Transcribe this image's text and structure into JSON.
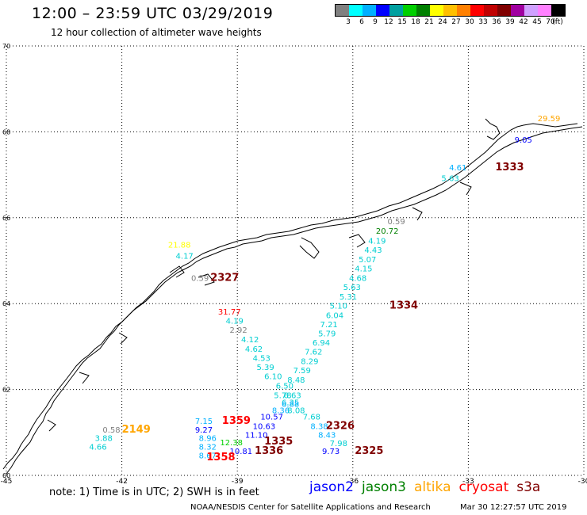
{
  "header": {
    "title": "12:00 – 23:59 UTC 03/29/2019",
    "subtitle": "12 hour collection of altimeter wave heights"
  },
  "color_scale": {
    "colors": [
      "#808080",
      "#00ffff",
      "#00b0ff",
      "#0000ff",
      "#00a0a0",
      "#00d000",
      "#008000",
      "#ffff00",
      "#ffc000",
      "#ff8000",
      "#ff0000",
      "#c00000",
      "#800000",
      "#a000a0",
      "#d0a0ff",
      "#ff80ff",
      "#000000"
    ],
    "labels": [
      "3",
      "6",
      "9",
      "12",
      "15",
      "18",
      "21",
      "24",
      "27",
      "30",
      "33",
      "36",
      "39",
      "42",
      "45",
      "70",
      "(ft)"
    ]
  },
  "map": {
    "lat_labels": [
      "70",
      "68",
      "66",
      "64",
      "62",
      "60"
    ],
    "lon_labels": [
      "-45",
      "-42",
      "-39",
      "-36",
      "-33",
      "-30"
    ],
    "wave_values": [
      {
        "text": "29.59",
        "lon": -31.2,
        "lat": 68.25,
        "color": "#ffa500"
      },
      {
        "text": "9.05",
        "lon": -31.8,
        "lat": 67.75,
        "color": "#0000ff"
      },
      {
        "text": "4.61",
        "lon": -33.5,
        "lat": 67.1,
        "color": "#00b0ff"
      },
      {
        "text": "5.63",
        "lon": -33.7,
        "lat": 66.85,
        "color": "#00ced1"
      },
      {
        "text": "1333",
        "lon": -32.3,
        "lat": 67.1,
        "color": "#800000",
        "bold": true
      },
      {
        "text": "0.59",
        "lon": -35.1,
        "lat": 65.85,
        "color": "#808080"
      },
      {
        "text": "20.72",
        "lon": -35.4,
        "lat": 65.63,
        "color": "#008000"
      },
      {
        "text": "4.19",
        "lon": -35.6,
        "lat": 65.4,
        "color": "#00ced1"
      },
      {
        "text": "4.43",
        "lon": -35.7,
        "lat": 65.18,
        "color": "#00ced1"
      },
      {
        "text": "5.07",
        "lon": -35.85,
        "lat": 64.96,
        "color": "#00ced1"
      },
      {
        "text": "4.15",
        "lon": -35.95,
        "lat": 64.75,
        "color": "#00ced1"
      },
      {
        "text": "4.68",
        "lon": -36.1,
        "lat": 64.53,
        "color": "#00ced1"
      },
      {
        "text": "5.63",
        "lon": -36.25,
        "lat": 64.32,
        "color": "#00ced1"
      },
      {
        "text": "5.31",
        "lon": -36.35,
        "lat": 64.1,
        "color": "#00ced1"
      },
      {
        "text": "5.10",
        "lon": -36.6,
        "lat": 63.88,
        "color": "#00ced1"
      },
      {
        "text": "1334",
        "lon": -35.05,
        "lat": 63.88,
        "color": "#800000",
        "bold": true
      },
      {
        "text": "6.04",
        "lon": -36.7,
        "lat": 63.66,
        "color": "#00ced1"
      },
      {
        "text": "7.21",
        "lon": -36.85,
        "lat": 63.45,
        "color": "#00ced1"
      },
      {
        "text": "5.79",
        "lon": -36.9,
        "lat": 63.24,
        "color": "#00ced1"
      },
      {
        "text": "6.94",
        "lon": -37.05,
        "lat": 63.03,
        "color": "#00ced1"
      },
      {
        "text": "7.62",
        "lon": -37.25,
        "lat": 62.81,
        "color": "#00ced1"
      },
      {
        "text": "8.29",
        "lon": -37.35,
        "lat": 62.59,
        "color": "#00ced1"
      },
      {
        "text": "7.59",
        "lon": -37.55,
        "lat": 62.38,
        "color": "#00ced1"
      },
      {
        "text": "8.48",
        "lon": -37.7,
        "lat": 62.16,
        "color": "#00ced1"
      },
      {
        "text": "21.88",
        "lon": -40.8,
        "lat": 65.3,
        "color": "#ffff00"
      },
      {
        "text": "4.17",
        "lon": -40.6,
        "lat": 65.05,
        "color": "#00ced1"
      },
      {
        "text": "0.59",
        "lon": -40.2,
        "lat": 64.53,
        "color": "#808080"
      },
      {
        "text": "2327",
        "lon": -39.7,
        "lat": 64.53,
        "color": "#800000",
        "bold": true
      },
      {
        "text": "31.77",
        "lon": -39.5,
        "lat": 63.75,
        "color": "#ff0000"
      },
      {
        "text": "4.19",
        "lon": -39.3,
        "lat": 63.53,
        "color": "#00ced1"
      },
      {
        "text": "2.92",
        "lon": -39.2,
        "lat": 63.32,
        "color": "#808080"
      },
      {
        "text": "4.12",
        "lon": -38.9,
        "lat": 63.1,
        "color": "#00ced1"
      },
      {
        "text": "4.62",
        "lon": -38.8,
        "lat": 62.88,
        "color": "#00ced1"
      },
      {
        "text": "4.53",
        "lon": -38.6,
        "lat": 62.67,
        "color": "#00ced1"
      },
      {
        "text": "5.39",
        "lon": -38.5,
        "lat": 62.45,
        "color": "#00ced1"
      },
      {
        "text": "6.10",
        "lon": -38.3,
        "lat": 62.24,
        "color": "#00ced1"
      },
      {
        "text": "6.50",
        "lon": -38.0,
        "lat": 62.02,
        "color": "#00ced1"
      },
      {
        "text": "5.78",
        "lon": -38.05,
        "lat": 61.8,
        "color": "#00ced1"
      },
      {
        "text": "6.63",
        "lon": -37.8,
        "lat": 61.8,
        "color": "#00ced1"
      },
      {
        "text": "6.35",
        "lon": -37.85,
        "lat": 61.63,
        "color": "#00ced1"
      },
      {
        "text": "6.88",
        "lon": -37.85,
        "lat": 61.6,
        "color": "#00b0ff"
      },
      {
        "text": "8.36",
        "lon": -38.1,
        "lat": 61.45,
        "color": "#00b0ff"
      },
      {
        "text": "8.08",
        "lon": -37.7,
        "lat": 61.45,
        "color": "#00ced1"
      },
      {
        "text": "10.57",
        "lon": -38.4,
        "lat": 61.3,
        "color": "#0000ff"
      },
      {
        "text": "7.68",
        "lon": -37.3,
        "lat": 61.3,
        "color": "#00ced1"
      },
      {
        "text": "10.63",
        "lon": -38.6,
        "lat": 61.08,
        "color": "#0000ff"
      },
      {
        "text": "8.38",
        "lon": -37.1,
        "lat": 61.08,
        "color": "#00b0ff"
      },
      {
        "text": "2326",
        "lon": -36.7,
        "lat": 61.08,
        "color": "#800000",
        "bold": true
      },
      {
        "text": "11.10",
        "lon": -38.8,
        "lat": 60.88,
        "color": "#0000ff"
      },
      {
        "text": "8.43",
        "lon": -36.9,
        "lat": 60.88,
        "color": "#00b0ff"
      },
      {
        "text": "7.15",
        "lon": -40.1,
        "lat": 61.2,
        "color": "#00b0ff"
      },
      {
        "text": "1359",
        "lon": -39.4,
        "lat": 61.2,
        "color": "#ff0000",
        "bold": true
      },
      {
        "text": "9.27",
        "lon": -40.1,
        "lat": 61.0,
        "color": "#0000ff"
      },
      {
        "text": "8.96",
        "lon": -40.0,
        "lat": 60.8,
        "color": "#00b0ff"
      },
      {
        "text": "12.38",
        "lon": -39.45,
        "lat": 60.7,
        "color": "#00d000"
      },
      {
        "text": "1335",
        "lon": -38.3,
        "lat": 60.72,
        "color": "#800000",
        "bold": true
      },
      {
        "text": "7.98",
        "lon": -36.6,
        "lat": 60.68,
        "color": "#00ced1"
      },
      {
        "text": "8.32",
        "lon": -40.0,
        "lat": 60.6,
        "color": "#00b0ff"
      },
      {
        "text": "10.81",
        "lon": -39.2,
        "lat": 60.5,
        "color": "#0000ff"
      },
      {
        "text": "1336",
        "lon": -38.55,
        "lat": 60.5,
        "color": "#800000",
        "bold": true
      },
      {
        "text": "9.73",
        "lon": -36.8,
        "lat": 60.5,
        "color": "#0000ff"
      },
      {
        "text": "2325",
        "lon": -35.95,
        "lat": 60.5,
        "color": "#800000",
        "bold": true
      },
      {
        "text": "8.67",
        "lon": -40.0,
        "lat": 60.4,
        "color": "#00b0ff"
      },
      {
        "text": "1358",
        "lon": -39.8,
        "lat": 60.35,
        "color": "#ff0000",
        "bold": true
      },
      {
        "text": "0.58",
        "lon": -42.5,
        "lat": 61.0,
        "color": "#808080"
      },
      {
        "text": "2149",
        "lon": -42.0,
        "lat": 61.0,
        "color": "#ffa500",
        "bold": true
      },
      {
        "text": "3.88",
        "lon": -42.7,
        "lat": 60.8,
        "color": "#00ced1"
      },
      {
        "text": "4.66",
        "lon": -42.85,
        "lat": 60.6,
        "color": "#00ced1"
      }
    ]
  },
  "footer": {
    "note": "note: 1) Time is in UTC; 2) SWH is in feet",
    "legend": [
      {
        "text": "jason2",
        "color": "#0000ff"
      },
      {
        "text": "jason3",
        "color": "#008000"
      },
      {
        "text": "altika",
        "color": "#ffa500"
      },
      {
        "text": "cryosat",
        "color": "#ff0000"
      },
      {
        "text": "s3a",
        "color": "#800000"
      }
    ],
    "credit": "NOAA/NESDIS Center for Satellite Applications and Research",
    "timestamp": "Mar 30 12:27:57 UTC 2019"
  }
}
